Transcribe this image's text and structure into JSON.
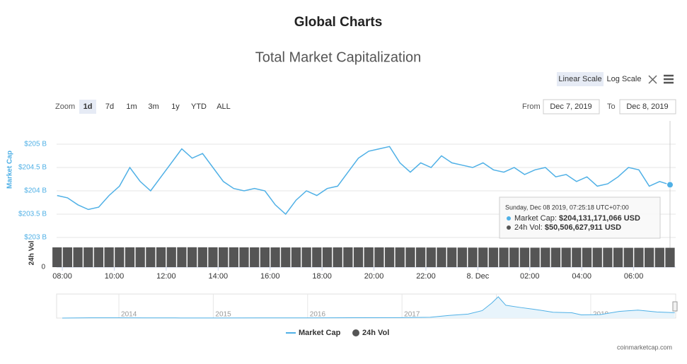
{
  "page": {
    "heading": "Global Charts",
    "scale_buttons": [
      "Linear Scale",
      "Log Scale"
    ],
    "zoom_label": "Zoom",
    "zoom_buttons": [
      "1d",
      "7d",
      "1m",
      "3m",
      "1y",
      "YTD",
      "ALL"
    ],
    "from_label": "From",
    "from": "Dec 7, 2019",
    "to_label": "To",
    "to": "Dec 8, 2019",
    "credit": "coinmarketcap.com"
  },
  "chart_data": {
    "type": "line",
    "title": "Total Market Capitalization",
    "ylabel": "Market Cap",
    "y2label": "24h Vol",
    "x": [
      7.8,
      8.2,
      8.6,
      9,
      9.4,
      9.8,
      10.2,
      10.6,
      11,
      11.4,
      11.8,
      12.2,
      12.6,
      13,
      13.4,
      13.8,
      14.2,
      14.6,
      15,
      15.4,
      15.8,
      16.2,
      16.6,
      17,
      17.4,
      17.8,
      18.2,
      18.6,
      19,
      19.4,
      19.8,
      20.2,
      20.6,
      21,
      21.4,
      21.8,
      22.2,
      22.6,
      23,
      23.4,
      23.8,
      24.2,
      24.6,
      25,
      25.4,
      25.8,
      26.2,
      26.6,
      27,
      27.4,
      27.8,
      28.2,
      28.6,
      29,
      29.4,
      29.8,
      30.2,
      30.6,
      31,
      31.4
    ],
    "xlim": [
      7.78,
      31.4
    ],
    "xticks": [
      {
        "value": 8,
        "label": "08:00"
      },
      {
        "value": 10,
        "label": "10:00"
      },
      {
        "value": 12,
        "label": "12:00"
      },
      {
        "value": 14,
        "label": "14:00"
      },
      {
        "value": 16,
        "label": "16:00"
      },
      {
        "value": 18,
        "label": "18:00"
      },
      {
        "value": 20,
        "label": "20:00"
      },
      {
        "value": 22,
        "label": "22:00"
      },
      {
        "value": 24,
        "label": "8. Dec"
      },
      {
        "value": 26,
        "label": "02:00"
      },
      {
        "value": 28,
        "label": "04:00"
      },
      {
        "value": 30,
        "label": "06:00"
      }
    ],
    "ylim": [
      203,
      205.5
    ],
    "yticks": [
      {
        "value": 203,
        "label": "$203 B"
      },
      {
        "value": 203.5,
        "label": "$203.5 B"
      },
      {
        "value": 204,
        "label": "$204 B"
      },
      {
        "value": 204.5,
        "label": "$204.5 B"
      },
      {
        "value": 205,
        "label": "$205 B"
      }
    ],
    "y2lim": [
      0,
      70
    ],
    "y2ticks": [
      0
    ],
    "grid": true,
    "series": [
      {
        "name": "Market Cap",
        "color": "#4fb0e6",
        "values": [
          203.9,
          203.85,
          203.7,
          203.6,
          203.65,
          203.9,
          204.1,
          204.5,
          204.2,
          204.0,
          204.3,
          204.6,
          204.9,
          204.7,
          204.8,
          204.5,
          204.2,
          204.05,
          204.0,
          204.05,
          204.0,
          203.7,
          203.5,
          203.8,
          204.0,
          203.9,
          204.05,
          204.1,
          204.4,
          204.7,
          204.85,
          204.9,
          204.95,
          204.6,
          204.4,
          204.6,
          204.5,
          204.75,
          204.6,
          204.55,
          204.5,
          204.6,
          204.45,
          204.4,
          204.5,
          204.35,
          204.45,
          204.5,
          204.3,
          204.35,
          204.2,
          204.3,
          204.1,
          204.15,
          204.3,
          204.5,
          204.45,
          204.1,
          204.2,
          204.13
        ]
      },
      {
        "name": "24h Vol",
        "color": "#555555",
        "axis": "y2",
        "values": [
          51.6,
          51.6,
          51.5,
          51.5,
          51.5,
          51.6,
          51.6,
          51.7,
          51.7,
          51.8,
          51.8,
          51.9,
          51.9,
          51.9,
          51.8,
          51.8,
          51.7,
          51.7,
          51.6,
          51.6,
          51.5,
          51.5,
          51.4,
          51.4,
          51.4,
          51.4,
          51.5,
          51.5,
          51.6,
          51.6,
          51.6,
          51.5,
          51.5,
          51.4,
          51.3,
          51.3,
          51.2,
          51.2,
          51.1,
          51.1,
          51.0,
          51.0,
          50.9,
          50.9,
          50.9,
          50.8,
          50.8,
          50.8,
          50.7,
          50.7,
          50.7,
          50.6,
          50.6,
          50.6,
          50.6,
          50.5,
          50.5,
          50.5,
          50.5,
          50.5
        ]
      }
    ],
    "tooltip": {
      "time": "Sunday, Dec 08 2019, 07:25:18 UTC+07:00",
      "rows": [
        {
          "name": "Market Cap",
          "value": "$204,131,171,066 USD"
        },
        {
          "name": "24h Vol",
          "value": "$50,506,627,911 USD"
        }
      ]
    },
    "navigator": {
      "x": [
        2013.4,
        2013.7,
        2014,
        2014.3,
        2014.6,
        2015,
        2015.5,
        2016,
        2016.5,
        2017,
        2017.3,
        2017.5,
        2017.7,
        2017.85,
        2017.95,
        2018.02,
        2018.1,
        2018.25,
        2018.4,
        2018.6,
        2018.8,
        2018.9,
        2019.1,
        2019.3,
        2019.5,
        2019.7,
        2019.89
      ],
      "values": [
        1.5,
        10,
        10,
        7,
        5,
        4,
        5,
        7,
        12,
        18,
        30,
        100,
        150,
        280,
        560,
        800,
        480,
        400,
        330,
        220,
        200,
        120,
        130,
        250,
        300,
        230,
        204
      ],
      "xlim": [
        2013.34,
        2019.9
      ],
      "ylim": [
        0,
        850
      ],
      "xticks": [
        2014,
        2015,
        2016,
        2017,
        2018,
        2019
      ]
    }
  }
}
